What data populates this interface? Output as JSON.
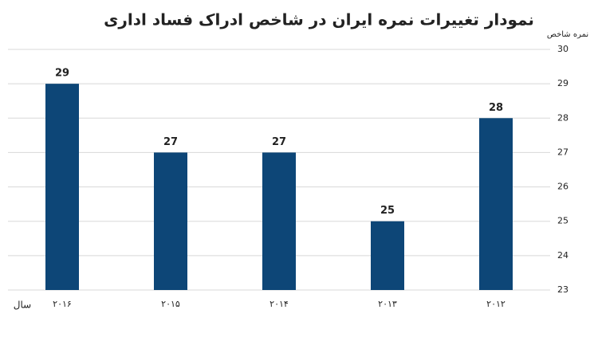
{
  "chart_data": {
    "type": "bar",
    "title": "نمودار تغییرات نمره ایران در شاخص ادراک فساد اداری",
    "y_label": "نمره شاخص",
    "x_label": "سال",
    "categories": [
      "۲۰۱۶",
      "۲۰۱۵",
      "۲۰۱۴",
      "۲۰۱۳",
      "۲۰۱۲"
    ],
    "values": [
      29,
      27,
      27,
      25,
      28
    ],
    "color": "#0d4677",
    "ylim": [
      23,
      30
    ],
    "yticks": [
      23,
      24,
      25,
      26,
      27,
      28,
      29,
      30
    ],
    "grid": true
  }
}
